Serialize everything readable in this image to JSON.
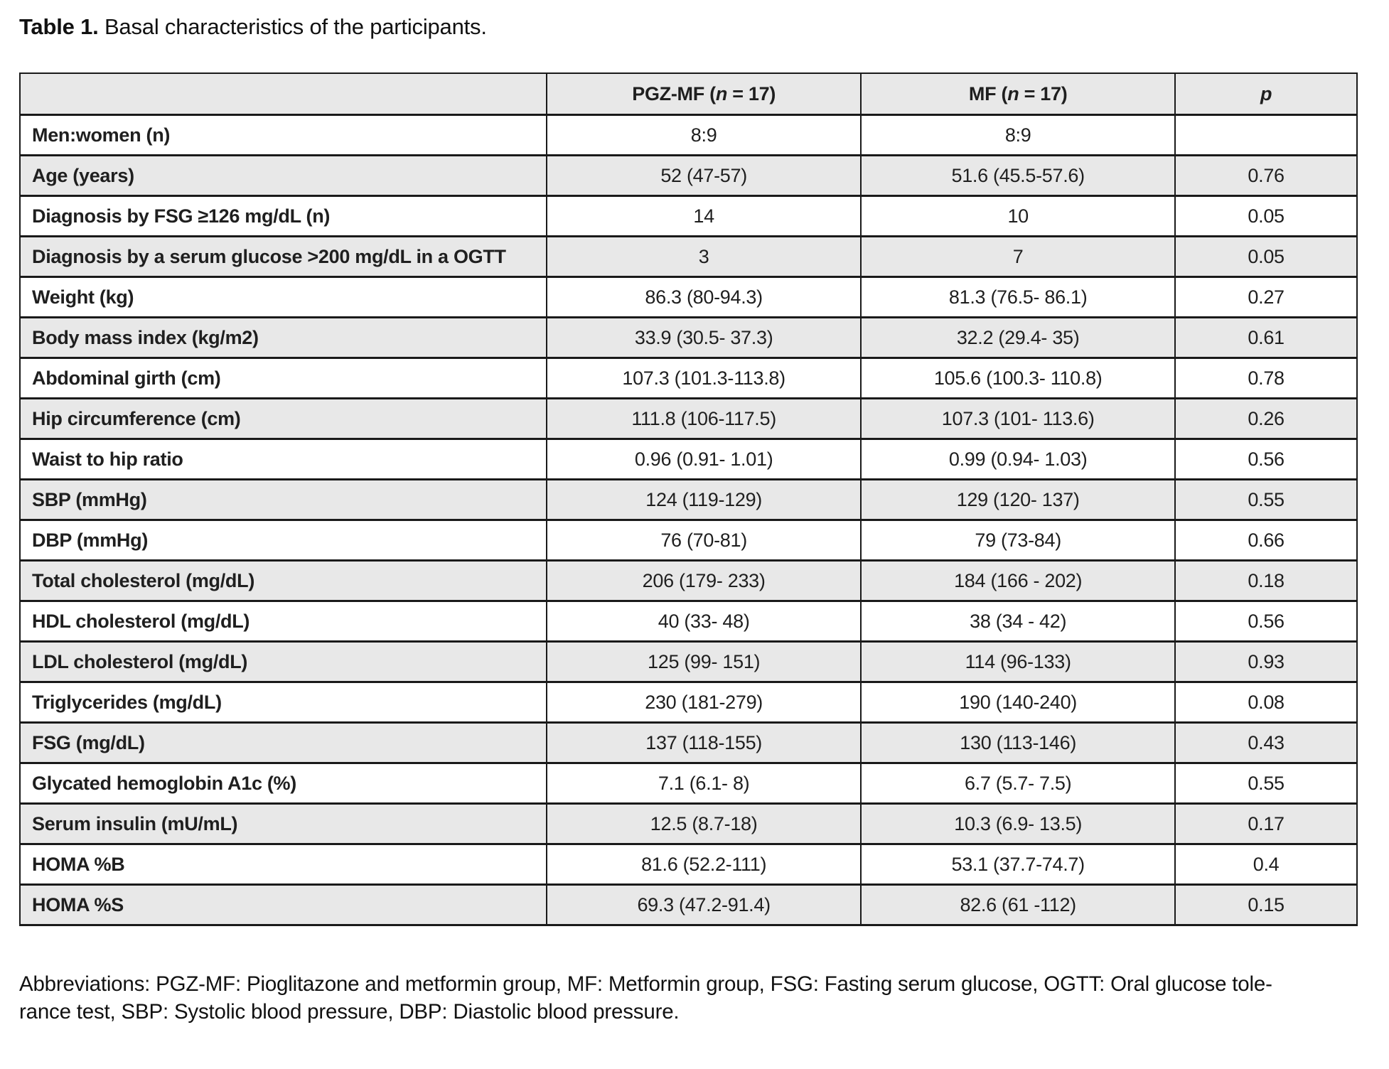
{
  "title": {
    "label": "Table 1.",
    "text": " Basal characteristics of the participants."
  },
  "colors": {
    "header_bg": "#e8e8e8",
    "row_alt_bg": "#e8e8e8",
    "border": "#1a1a1a",
    "text": "#1f1f1f"
  },
  "table": {
    "header": {
      "label_col": "",
      "cols": [
        {
          "name": "pgz-mf-column-header",
          "segments": [
            {
              "text": "PGZ-MF ("
            },
            {
              "text": "n",
              "italic": true
            },
            {
              "text": " = 17)"
            }
          ]
        },
        {
          "name": "mf-column-header",
          "segments": [
            {
              "text": "MF ("
            },
            {
              "text": "n",
              "italic": true
            },
            {
              "text": " = 17)"
            }
          ]
        },
        {
          "name": "p-column-header",
          "segments": [
            {
              "text": "p",
              "italic": true
            }
          ]
        }
      ]
    },
    "rows": [
      {
        "label": "Men:women (n)",
        "pgz": "8:9",
        "mf": "8:9",
        "p": ""
      },
      {
        "label": "Age (years)",
        "pgz": "52 (47-57)",
        "mf": "51.6 (45.5-57.6)",
        "p": "0.76"
      },
      {
        "label": "Diagnosis by FSG ≥126 mg/dL (n)",
        "pgz": "14",
        "mf": "10",
        "p": "0.05"
      },
      {
        "label": "Diagnosis by a serum glucose >200 mg/dL in a OGTT",
        "pgz": "3",
        "mf": "7",
        "p": "0.05"
      },
      {
        "label": "Weight (kg)",
        "pgz": "86.3 (80-94.3)",
        "mf": "81.3 (76.5- 86.1)",
        "p": "0.27"
      },
      {
        "label": "Body mass index (kg/m2)",
        "pgz": "33.9 (30.5- 37.3)",
        "mf": "32.2 (29.4- 35)",
        "p": "0.61"
      },
      {
        "label": "Abdominal girth (cm)",
        "pgz": "107.3 (101.3-113.8)",
        "mf": "105.6 (100.3- 110.8)",
        "p": "0.78"
      },
      {
        "label": "Hip circumference (cm)",
        "pgz": "111.8 (106-117.5)",
        "mf": "107.3 (101- 113.6)",
        "p": "0.26"
      },
      {
        "label": "Waist to hip ratio",
        "pgz": "0.96 (0.91- 1.01)",
        "mf": "0.99 (0.94- 1.03)",
        "p": "0.56"
      },
      {
        "label": "SBP (mmHg)",
        "pgz": "124 (119-129)",
        "mf": "129 (120- 137)",
        "p": "0.55"
      },
      {
        "label": "DBP (mmHg)",
        "pgz": "76 (70-81)",
        "mf": "79 (73-84)",
        "p": "0.66"
      },
      {
        "label": "Total cholesterol (mg/dL)",
        "pgz": "206 (179- 233)",
        "mf": "184 (166 - 202)",
        "p": "0.18"
      },
      {
        "label": "HDL cholesterol (mg/dL)",
        "pgz": "40 (33- 48)",
        "mf": "38 (34 - 42)",
        "p": "0.56"
      },
      {
        "label": "LDL cholesterol (mg/dL)",
        "pgz": "125 (99- 151)",
        "mf": "114 (96-133)",
        "p": "0.93"
      },
      {
        "label": "Triglycerides (mg/dL)",
        "pgz": "230 (181-279)",
        "mf": "190 (140-240)",
        "p": "0.08"
      },
      {
        "label": "FSG (mg/dL)",
        "pgz": "137 (118-155)",
        "mf": "130 (113-146)",
        "p": "0.43"
      },
      {
        "label": "Glycated hemoglobin A1c (%)",
        "pgz": "7.1 (6.1- 8)",
        "mf": "6.7 (5.7- 7.5)",
        "p": "0.55"
      },
      {
        "label": "Serum insulin (mU/mL)",
        "pgz": "12.5 (8.7-18)",
        "mf": "10.3 (6.9- 13.5)",
        "p": "0.17"
      },
      {
        "label": "HOMA %B",
        "pgz": "81.6 (52.2-111)",
        "mf": "53.1 (37.7-74.7)",
        "p": "0.4"
      },
      {
        "label": "HOMA %S",
        "pgz": "69.3 (47.2-91.4)",
        "mf": "82.6 (61 -112)",
        "p": "0.15"
      }
    ]
  },
  "footer": {
    "lines": [
      "Abbreviations: PGZ-MF: Pioglitazone and metformin group, MF: Metformin group, FSG: Fasting serum glucose, OGTT: Oral glucose tole-",
      "rance test, SBP: Systolic blood pressure, DBP: Diastolic blood pressure."
    ]
  }
}
